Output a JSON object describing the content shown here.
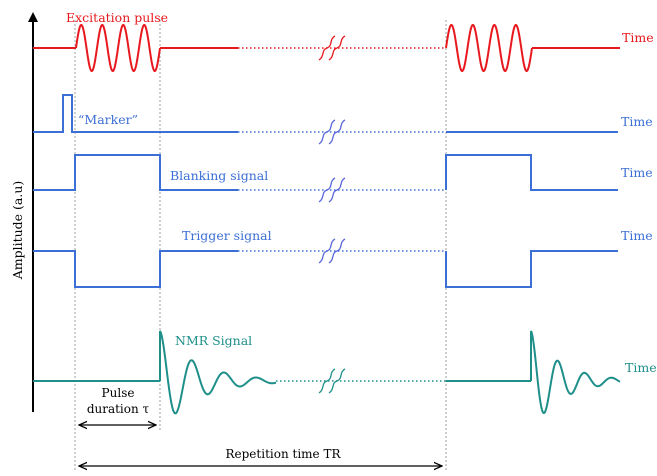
{
  "axis": {
    "ylabel": "Amplitude (a.u)"
  },
  "traces": {
    "excitation": {
      "label": "Excitation pulse",
      "time": "Time",
      "color": "#e8191e"
    },
    "marker": {
      "label": "“Marker”",
      "time": "Time",
      "color": "#3b6fd6"
    },
    "blanking": {
      "label": "Blanking signal",
      "time": "Time",
      "color": "#3b6fd6"
    },
    "trigger": {
      "label": "Trigger signal",
      "time": "Time",
      "color": "#3b6fd6"
    },
    "nmr": {
      "label": "NMR Signal",
      "time": "Time",
      "color": "#1f8f8a"
    }
  },
  "break_color": "#5a67d8",
  "annotations": {
    "pulse_line1": "Pulse",
    "pulse_line2": "duration τ",
    "repetition": "Repetition time TR"
  }
}
